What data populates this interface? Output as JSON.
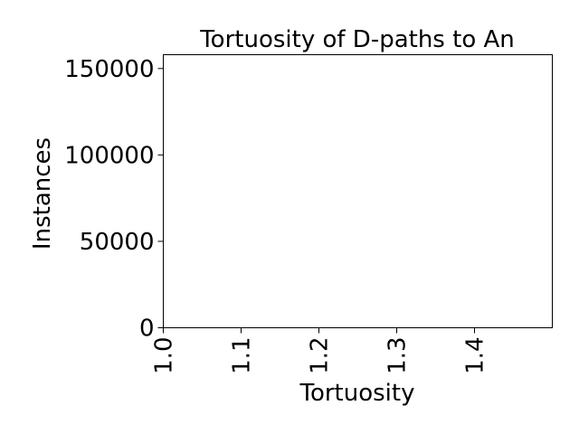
{
  "chart_data": {
    "type": "bar",
    "title": "Tortuosity of D-paths to An",
    "xlabel": "Tortuosity",
    "ylabel": "Instances",
    "xlim": [
      1.0,
      1.5
    ],
    "ylim": [
      0,
      158000
    ],
    "xticks": [
      1.0,
      1.1,
      1.2,
      1.3,
      1.4
    ],
    "xtick_labels": [
      "1.0",
      "1.1",
      "1.2",
      "1.3",
      "1.4"
    ],
    "yticks": [
      0,
      50000,
      100000,
      150000
    ],
    "ytick_labels": [
      "0",
      "50000",
      "100000",
      "150000"
    ],
    "x": [],
    "values": [],
    "grid": false,
    "legend": "none"
  }
}
